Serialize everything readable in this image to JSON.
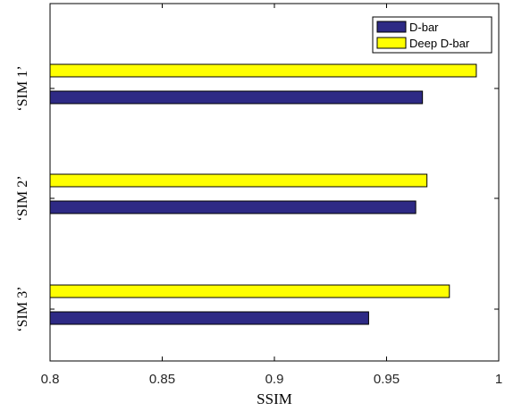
{
  "chart_data": {
    "type": "bar",
    "orientation": "horizontal",
    "categories": [
      "‘SIM 1’",
      "‘SIM 2’",
      "‘SIM 3’"
    ],
    "series": [
      {
        "name": "D-bar",
        "color": "#2e2a85",
        "values": [
          0.966,
          0.963,
          0.942
        ]
      },
      {
        "name": "Deep D-bar",
        "color": "#ffff00",
        "values": [
          0.99,
          0.968,
          0.978
        ]
      }
    ],
    "xlabel": "SSIM",
    "ylabel": "",
    "xlim": [
      0.8,
      1.0
    ],
    "xticks": [
      "0.8",
      "0.85",
      "0.9",
      "0.95",
      "1"
    ],
    "legend": "top-right",
    "grid": false
  }
}
